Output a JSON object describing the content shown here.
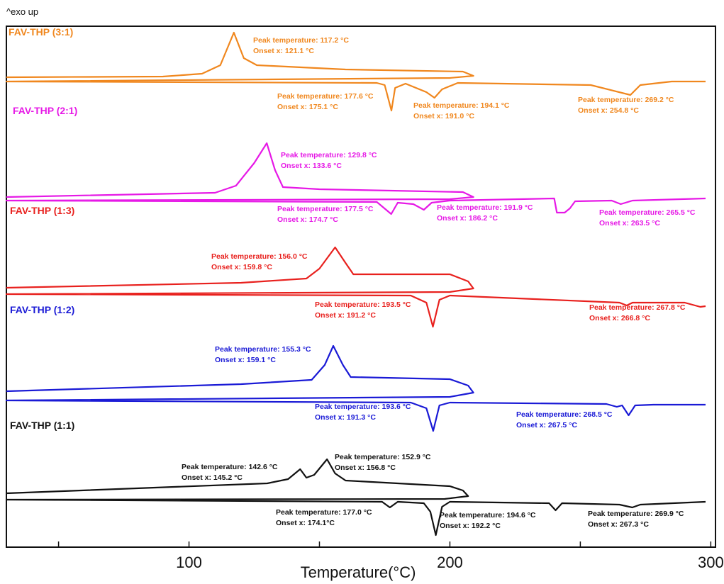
{
  "chart_data": {
    "type": "line",
    "exo_label": "^exo up",
    "xlabel": "Temperature(°C)",
    "xlim": [
      30,
      300
    ],
    "x_ticks": [
      100,
      200,
      300
    ],
    "grid": false,
    "series": [
      {
        "name": "FAV-THP (3:1)",
        "color": "#F0871E",
        "curve": "heat-cool-heat",
        "offset": 0,
        "heat1_ramp": [
          {
            "x": 30,
            "y": 3
          },
          {
            "x": 90,
            "y": 4
          },
          {
            "x": 105,
            "y": 8
          },
          {
            "x": 112,
            "y": 20
          },
          {
            "x": 117.2,
            "y": 66
          },
          {
            "x": 121,
            "y": 30
          },
          {
            "x": 126,
            "y": 20
          },
          {
            "x": 160,
            "y": 14
          },
          {
            "x": 205,
            "y": 11
          },
          {
            "x": 209,
            "y": 5
          }
        ],
        "cool_ramp": [
          {
            "x": 209,
            "y": 5
          },
          {
            "x": 200,
            "y": 2
          },
          {
            "x": 30,
            "y": -3
          }
        ],
        "heat2_ramp": [
          {
            "x": 30,
            "y": -3
          },
          {
            "x": 172,
            "y": -5
          },
          {
            "x": 175,
            "y": -8
          },
          {
            "x": 177.6,
            "y": -44
          },
          {
            "x": 179,
            "y": -12
          },
          {
            "x": 183,
            "y": -6
          },
          {
            "x": 191,
            "y": -18
          },
          {
            "x": 194.1,
            "y": -26
          },
          {
            "x": 197,
            "y": -14
          },
          {
            "x": 203,
            "y": -5
          },
          {
            "x": 254,
            "y": -8
          },
          {
            "x": 269.2,
            "y": -22
          },
          {
            "x": 273,
            "y": -8
          },
          {
            "x": 285,
            "y": -3
          },
          {
            "x": 298,
            "y": -3
          }
        ],
        "annotations": [
          {
            "peak": "Peak temperature: 117.2 °C",
            "onset": "Onset x: 121.1 °C"
          },
          {
            "peak": "Peak temperature: 177.6 °C",
            "onset": "Onset x: 175.1 °C"
          },
          {
            "peak": "Peak temperature: 194.1 °C",
            "onset": "Onset x: 191.0 °C"
          },
          {
            "peak": "Peak temperature: 269.2 °C",
            "onset": "Onset x: 254.8 °C"
          }
        ]
      },
      {
        "name": "FAV-THP (2:1)",
        "color": "#E619E6",
        "curve": "heat-cool-heat",
        "offset": 0,
        "heat1_ramp": [
          {
            "x": 30,
            "y": 2
          },
          {
            "x": 110,
            "y": 8
          },
          {
            "x": 118,
            "y": 18
          },
          {
            "x": 125,
            "y": 50
          },
          {
            "x": 129.8,
            "y": 78
          },
          {
            "x": 133,
            "y": 40
          },
          {
            "x": 136,
            "y": 16
          },
          {
            "x": 150,
            "y": 13
          },
          {
            "x": 205,
            "y": 9
          },
          {
            "x": 209,
            "y": 2
          }
        ],
        "cool_ramp": [
          {
            "x": 209,
            "y": 2
          },
          {
            "x": 200,
            "y": -1
          },
          {
            "x": 30,
            "y": -3
          }
        ],
        "heat2_ramp": [
          {
            "x": 30,
            "y": -3
          },
          {
            "x": 172,
            "y": -5
          },
          {
            "x": 177.5,
            "y": -22
          },
          {
            "x": 180,
            "y": -6
          },
          {
            "x": 186,
            "y": -8
          },
          {
            "x": 190,
            "y": -16
          },
          {
            "x": 193,
            "y": -6
          },
          {
            "x": 200,
            "y": -3
          },
          {
            "x": 240,
            "y": 0
          },
          {
            "x": 241,
            "y": -20
          },
          {
            "x": 244,
            "y": -20
          },
          {
            "x": 246,
            "y": -14
          },
          {
            "x": 248,
            "y": -4
          },
          {
            "x": 262,
            "y": -3
          },
          {
            "x": 265.5,
            "y": -8
          },
          {
            "x": 270,
            "y": -3
          },
          {
            "x": 298,
            "y": 0
          }
        ],
        "annotations": [
          {
            "peak": "Peak temperature: 129.8 °C",
            "onset": "Onset x: 133.6 °C"
          },
          {
            "peak": "Peak temperature: 177.5 °C",
            "onset": "Onset x: 174.7 °C"
          },
          {
            "peak": "Peak temperature: 191.9 °C",
            "onset": "Onset x: 186.2 °C"
          },
          {
            "peak": "Peak temperature: 265.5 °C",
            "onset": "Onset x: 263.5 °C"
          }
        ]
      },
      {
        "name": "FAV-THP (1:3)",
        "color": "#E8211E",
        "curve": "heat-cool-heat",
        "offset": 0,
        "heat1_ramp": [
          {
            "x": 30,
            "y": 5
          },
          {
            "x": 120,
            "y": 12
          },
          {
            "x": 145,
            "y": 18
          },
          {
            "x": 150,
            "y": 32
          },
          {
            "x": 156,
            "y": 62
          },
          {
            "x": 160,
            "y": 40
          },
          {
            "x": 163,
            "y": 24
          },
          {
            "x": 200,
            "y": 24
          },
          {
            "x": 207,
            "y": 14
          },
          {
            "x": 209,
            "y": 4
          }
        ],
        "cool_ramp": [
          {
            "x": 209,
            "y": 4
          },
          {
            "x": 200,
            "y": -1
          },
          {
            "x": 30,
            "y": -4
          }
        ],
        "heat2_ramp": [
          {
            "x": 30,
            "y": -4
          },
          {
            "x": 185,
            "y": -6
          },
          {
            "x": 191,
            "y": -16
          },
          {
            "x": 193.5,
            "y": -50
          },
          {
            "x": 196,
            "y": -12
          },
          {
            "x": 200,
            "y": -6
          },
          {
            "x": 265,
            "y": -16
          },
          {
            "x": 267.8,
            "y": -20
          },
          {
            "x": 270,
            "y": -16
          },
          {
            "x": 290,
            "y": -16
          },
          {
            "x": 296,
            "y": -22
          },
          {
            "x": 298,
            "y": -21
          }
        ],
        "annotations": [
          {
            "peak": "Peak temperature: 156.0 °C",
            "onset": "Onset x: 159.8 °C"
          },
          {
            "peak": "Peak temperature: 193.5 °C",
            "onset": "Onset x: 191.2 °C"
          },
          {
            "peak": "Peak temperature: 267.8 °C",
            "onset": "Onset x: 266.8 °C"
          }
        ]
      },
      {
        "name": "FAV-THP (1:2)",
        "color": "#1A1AD6",
        "curve": "heat-cool-heat",
        "offset": 0,
        "heat1_ramp": [
          {
            "x": 30,
            "y": 8
          },
          {
            "x": 120,
            "y": 18
          },
          {
            "x": 147,
            "y": 24
          },
          {
            "x": 152,
            "y": 45
          },
          {
            "x": 155.3,
            "y": 72
          },
          {
            "x": 159,
            "y": 45
          },
          {
            "x": 162,
            "y": 28
          },
          {
            "x": 200,
            "y": 25
          },
          {
            "x": 207,
            "y": 16
          },
          {
            "x": 209,
            "y": 6
          }
        ],
        "cool_ramp": [
          {
            "x": 209,
            "y": 6
          },
          {
            "x": 200,
            "y": 0
          },
          {
            "x": 30,
            "y": -5
          }
        ],
        "heat2_ramp": [
          {
            "x": 30,
            "y": -5
          },
          {
            "x": 185,
            "y": -8
          },
          {
            "x": 191,
            "y": -16
          },
          {
            "x": 193.6,
            "y": -48
          },
          {
            "x": 196,
            "y": -12
          },
          {
            "x": 200,
            "y": -8
          },
          {
            "x": 260,
            "y": -10
          },
          {
            "x": 264,
            "y": -14
          },
          {
            "x": 266,
            "y": -12
          },
          {
            "x": 268.5,
            "y": -26
          },
          {
            "x": 271,
            "y": -12
          },
          {
            "x": 278,
            "y": -11
          },
          {
            "x": 298,
            "y": -11
          }
        ],
        "annotations": [
          {
            "peak": "Peak temperature: 155.3 °C",
            "onset": "Onset x: 159.1 °C"
          },
          {
            "peak": "Peak temperature: 193.6 °C",
            "onset": "Onset x: 191.3 °C"
          },
          {
            "peak": "Peak temperature: 268.5 °C",
            "onset": "Onset x: 267.5 °C"
          }
        ]
      },
      {
        "name": "FAV-THP (1:1)",
        "color": "#111111",
        "curve": "heat-cool-heat",
        "offset": 0,
        "heat1_ramp": [
          {
            "x": 30,
            "y": 4
          },
          {
            "x": 130,
            "y": 18
          },
          {
            "x": 138,
            "y": 24
          },
          {
            "x": 142.6,
            "y": 38
          },
          {
            "x": 145,
            "y": 26
          },
          {
            "x": 148,
            "y": 30
          },
          {
            "x": 152.9,
            "y": 52
          },
          {
            "x": 156,
            "y": 32
          },
          {
            "x": 160,
            "y": 22
          },
          {
            "x": 200,
            "y": 14
          },
          {
            "x": 205,
            "y": 8
          },
          {
            "x": 207,
            "y": 0
          }
        ],
        "cool_ramp": [
          {
            "x": 207,
            "y": 0
          },
          {
            "x": 198,
            "y": -4
          },
          {
            "x": 30,
            "y": -5
          }
        ],
        "heat2_ramp": [
          {
            "x": 30,
            "y": -5
          },
          {
            "x": 174,
            "y": -8
          },
          {
            "x": 177,
            "y": -16
          },
          {
            "x": 180,
            "y": -8
          },
          {
            "x": 190,
            "y": -10
          },
          {
            "x": 192.5,
            "y": -22
          },
          {
            "x": 194.6,
            "y": -55
          },
          {
            "x": 197,
            "y": -15
          },
          {
            "x": 200,
            "y": -8
          },
          {
            "x": 238,
            "y": -10
          },
          {
            "x": 240.5,
            "y": -20
          },
          {
            "x": 243,
            "y": -10
          },
          {
            "x": 265,
            "y": -12
          },
          {
            "x": 269.9,
            "y": -16
          },
          {
            "x": 273,
            "y": -12
          },
          {
            "x": 298,
            "y": -8
          }
        ],
        "annotations": [
          {
            "peak": "Peak temperature: 142.6 °C",
            "onset": "Onset x: 145.2 °C"
          },
          {
            "peak": "Peak temperature: 152.9 °C",
            "onset": "Onset x: 156.8 °C"
          },
          {
            "peak": "Peak temperature: 177.0 °C",
            "onset": "Onset x: 174.1°C"
          },
          {
            "peak": "Peak temperature: 194.6 °C",
            "onset": "Onset x: 192.2 °C"
          },
          {
            "peak": "Peak temperature: 269.9 °C",
            "onset": "Onset x: 267.3 °C"
          }
        ]
      }
    ]
  }
}
